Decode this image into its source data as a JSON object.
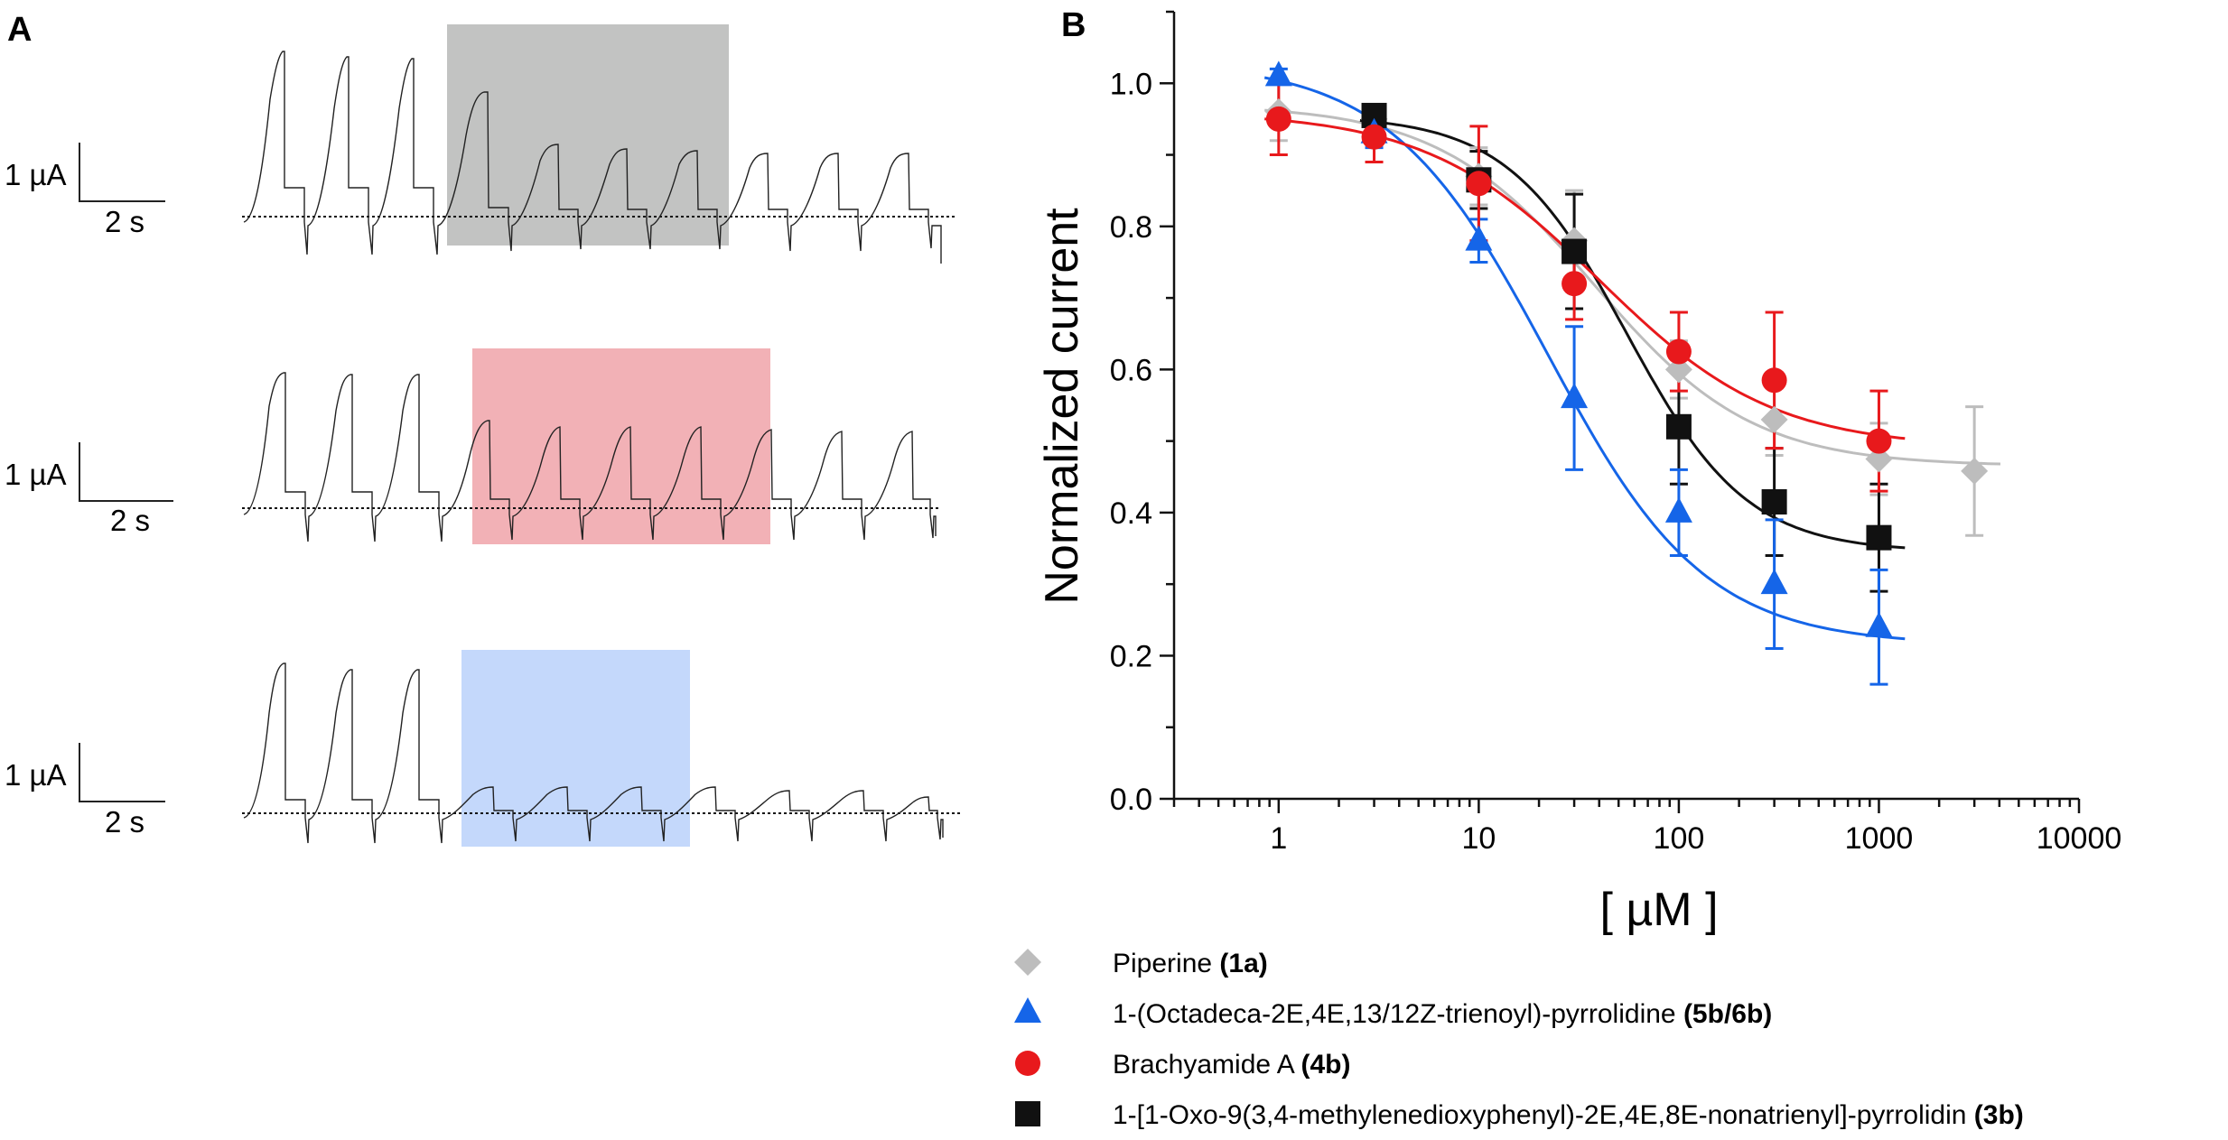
{
  "panels": {
    "a": {
      "letter": "A",
      "rows": [
        {
          "scale_current": "1 µA",
          "scale_time": "2 s",
          "block_color": "#c2c3c2"
        },
        {
          "scale_current": "1 µA",
          "scale_time": "2 s",
          "block_color": "#f2b1b6"
        },
        {
          "scale_current": "1 µA",
          "scale_time": "2 s",
          "block_color": "#c4d8fb"
        }
      ]
    },
    "b": {
      "letter": "B"
    }
  },
  "chart_data": {
    "type": "scatter",
    "title": "",
    "xlabel": "[ µM ]",
    "ylabel": "Normalized current",
    "xscale": "log",
    "xlim": [
      0.3,
      10000
    ],
    "ylim": [
      0,
      1.1
    ],
    "x_ticks": [
      1,
      10,
      100,
      1000,
      10000
    ],
    "x_tick_labels": [
      "1",
      "10",
      "100",
      "1000",
      "10000"
    ],
    "y_ticks": [
      0.0,
      0.2,
      0.4,
      0.6,
      0.8,
      1.0
    ],
    "y_tick_labels": [
      "0.0",
      "0.2",
      "0.4",
      "0.6",
      "0.8",
      "1.0"
    ],
    "series": [
      {
        "name": "Piperine",
        "bold": "(1a)",
        "marker": "diamond",
        "color": "#bdbdbd",
        "x": [
          1,
          3,
          10,
          30,
          100,
          300,
          1000,
          3000
        ],
        "y": [
          0.96,
          0.95,
          0.87,
          0.78,
          0.6,
          0.53,
          0.475,
          0.458
        ],
        "err": [
          0.04,
          0.02,
          0.04,
          0.07,
          0.04,
          0.05,
          0.05,
          0.09
        ],
        "fit": {
          "top": 0.97,
          "bottom": 0.465,
          "ic50": 38,
          "hill": 1.1
        }
      },
      {
        "name": "1-(Octadeca-2E,4E,13/12Z-trienoyl)-pyrrolidine",
        "bold": "(5b/6b)",
        "marker": "triangle",
        "color": "#1565e8",
        "x": [
          1,
          3,
          10,
          30,
          100,
          300,
          1000
        ],
        "y": [
          1.01,
          0.93,
          0.78,
          0.56,
          0.4,
          0.3,
          0.24
        ],
        "err": [
          0.01,
          0.02,
          0.03,
          0.1,
          0.06,
          0.09,
          0.08
        ],
        "fit": {
          "top": 1.03,
          "bottom": 0.215,
          "ic50": 22,
          "hill": 1.1
        }
      },
      {
        "name": "Brachyamide A",
        "bold": "(4b)",
        "marker": "circle",
        "color": "#e8191c",
        "x": [
          1,
          3,
          10,
          30,
          100,
          300,
          1000
        ],
        "y": [
          0.95,
          0.925,
          0.86,
          0.72,
          0.625,
          0.585,
          0.5
        ],
        "err": [
          0.05,
          0.035,
          0.08,
          0.05,
          0.055,
          0.095,
          0.07
        ],
        "fit": {
          "top": 0.96,
          "bottom": 0.49,
          "ic50": 40,
          "hill": 1.0
        }
      },
      {
        "name": "1-[1-Oxo-9(3,4-methylenedioxyphenyl)-2E,4E,8E-nonatrienyl]-pyrrolidin",
        "bold": "(3b)",
        "marker": "square",
        "color": "#111111",
        "x": [
          3,
          10,
          30,
          100,
          300,
          1000
        ],
        "y": [
          0.955,
          0.865,
          0.765,
          0.52,
          0.415,
          0.365
        ],
        "err": [
          0.015,
          0.04,
          0.08,
          0.08,
          0.075,
          0.075
        ],
        "fit": {
          "top": 0.955,
          "bottom": 0.345,
          "ic50": 55,
          "hill": 1.45
        }
      }
    ]
  }
}
